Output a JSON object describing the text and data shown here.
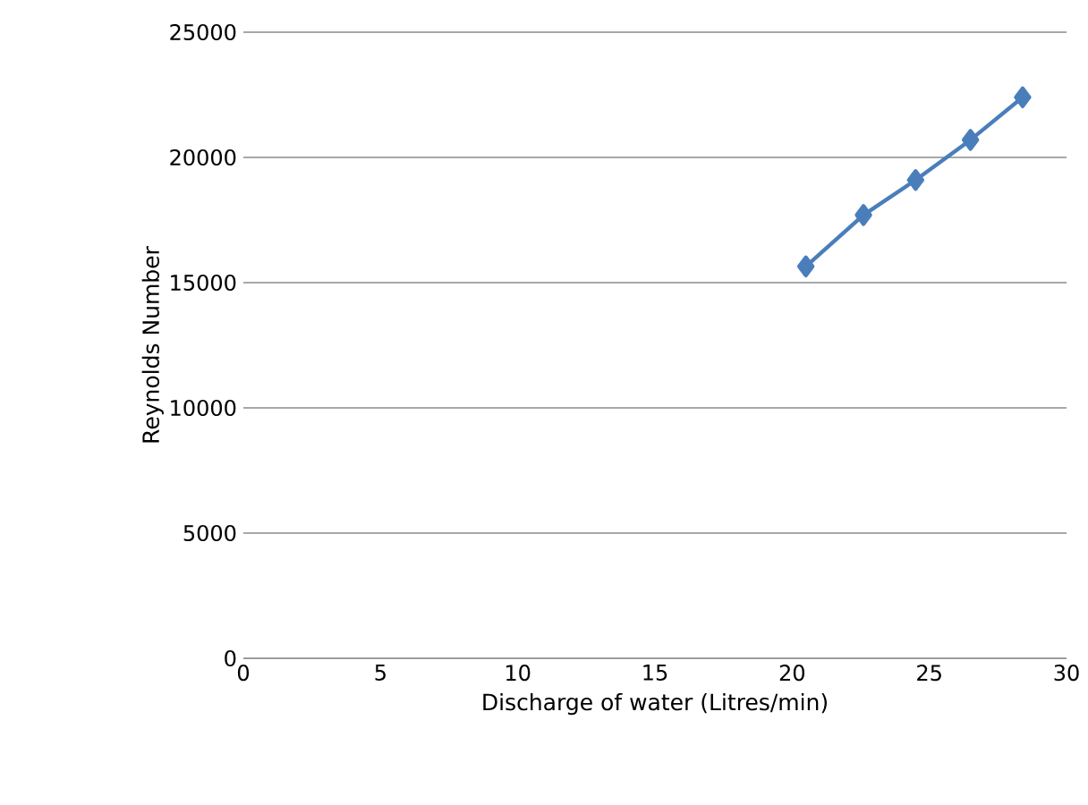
{
  "chart_data": {
    "type": "line",
    "xlabel": "Discharge of water (Litres/min)",
    "ylabel": "Reynolds Number",
    "x": [
      20.5,
      22.6,
      24.5,
      26.5,
      28.4
    ],
    "series": [
      {
        "color": "#4a7ebb",
        "values": [
          15650,
          17700,
          19100,
          20700,
          22400
        ]
      }
    ],
    "xlim": [
      0,
      30
    ],
    "xticks": [
      0,
      5,
      10,
      15,
      20,
      25,
      30
    ],
    "ylim": [
      0,
      25000
    ],
    "yticks": [
      0,
      5000,
      10000,
      15000,
      20000,
      25000
    ],
    "grid": "y",
    "marker": "diamond",
    "line_style": "solid"
  }
}
